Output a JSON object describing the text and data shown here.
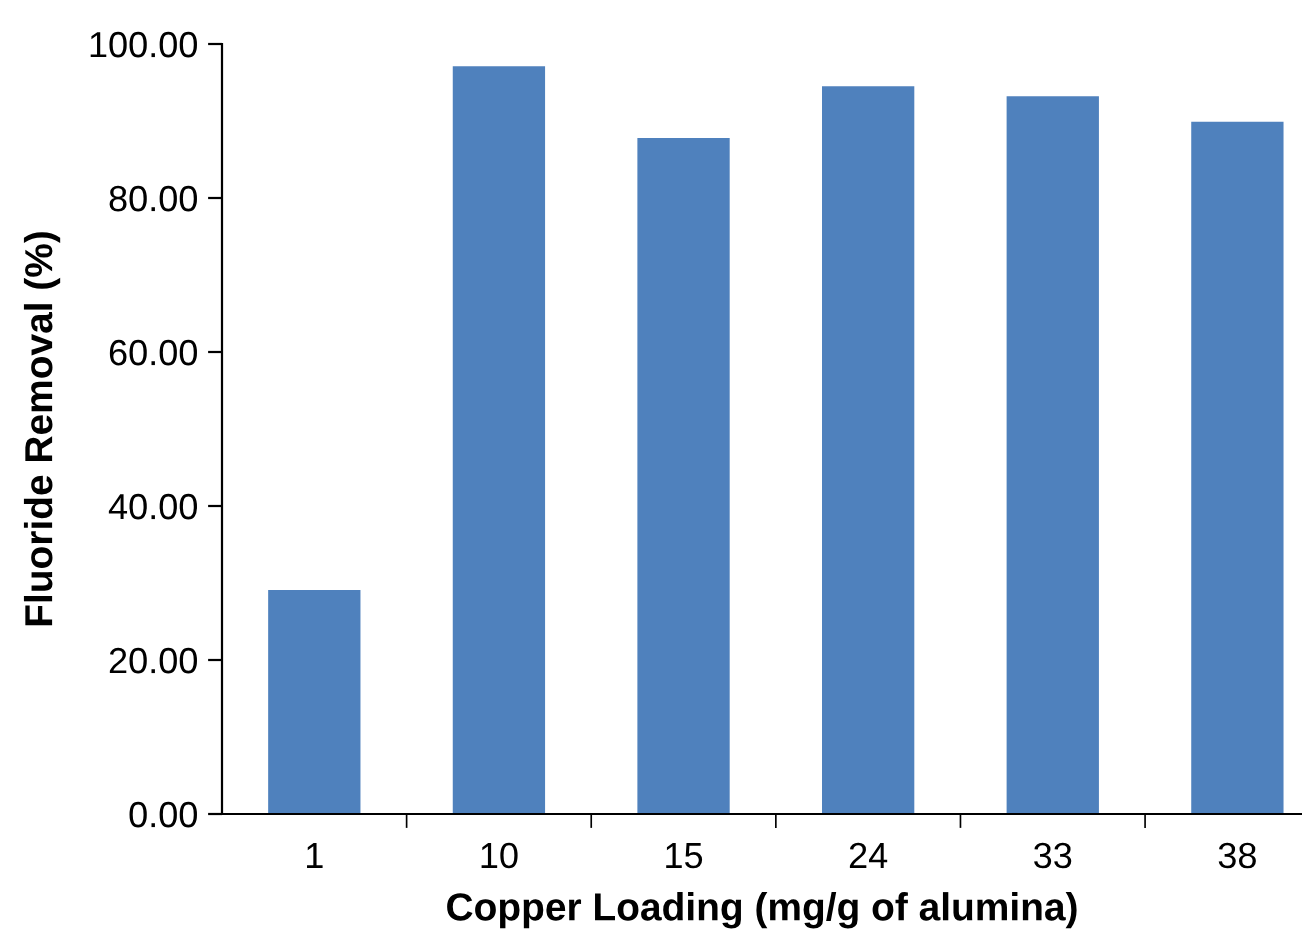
{
  "chart_data": {
    "type": "bar",
    "xlabel": "Copper Loading (mg/g of alumina)",
    "ylabel": "Fluoride Removal (%)",
    "categories": [
      "1",
      "10",
      "15",
      "24",
      "33",
      "38"
    ],
    "values": [
      29.1,
      97.1,
      87.8,
      94.5,
      93.2,
      89.9
    ],
    "color": "#4f81bd",
    "ylim": [
      0,
      100
    ],
    "yticks": [
      {
        "value": 0,
        "label": "0.00"
      },
      {
        "value": 20,
        "label": "20.00"
      },
      {
        "value": 40,
        "label": "40.00"
      },
      {
        "value": 60,
        "label": "60.00"
      },
      {
        "value": 80,
        "label": "80.00"
      },
      {
        "value": 100,
        "label": "100.00"
      }
    ],
    "grid": false,
    "legend": false
  }
}
